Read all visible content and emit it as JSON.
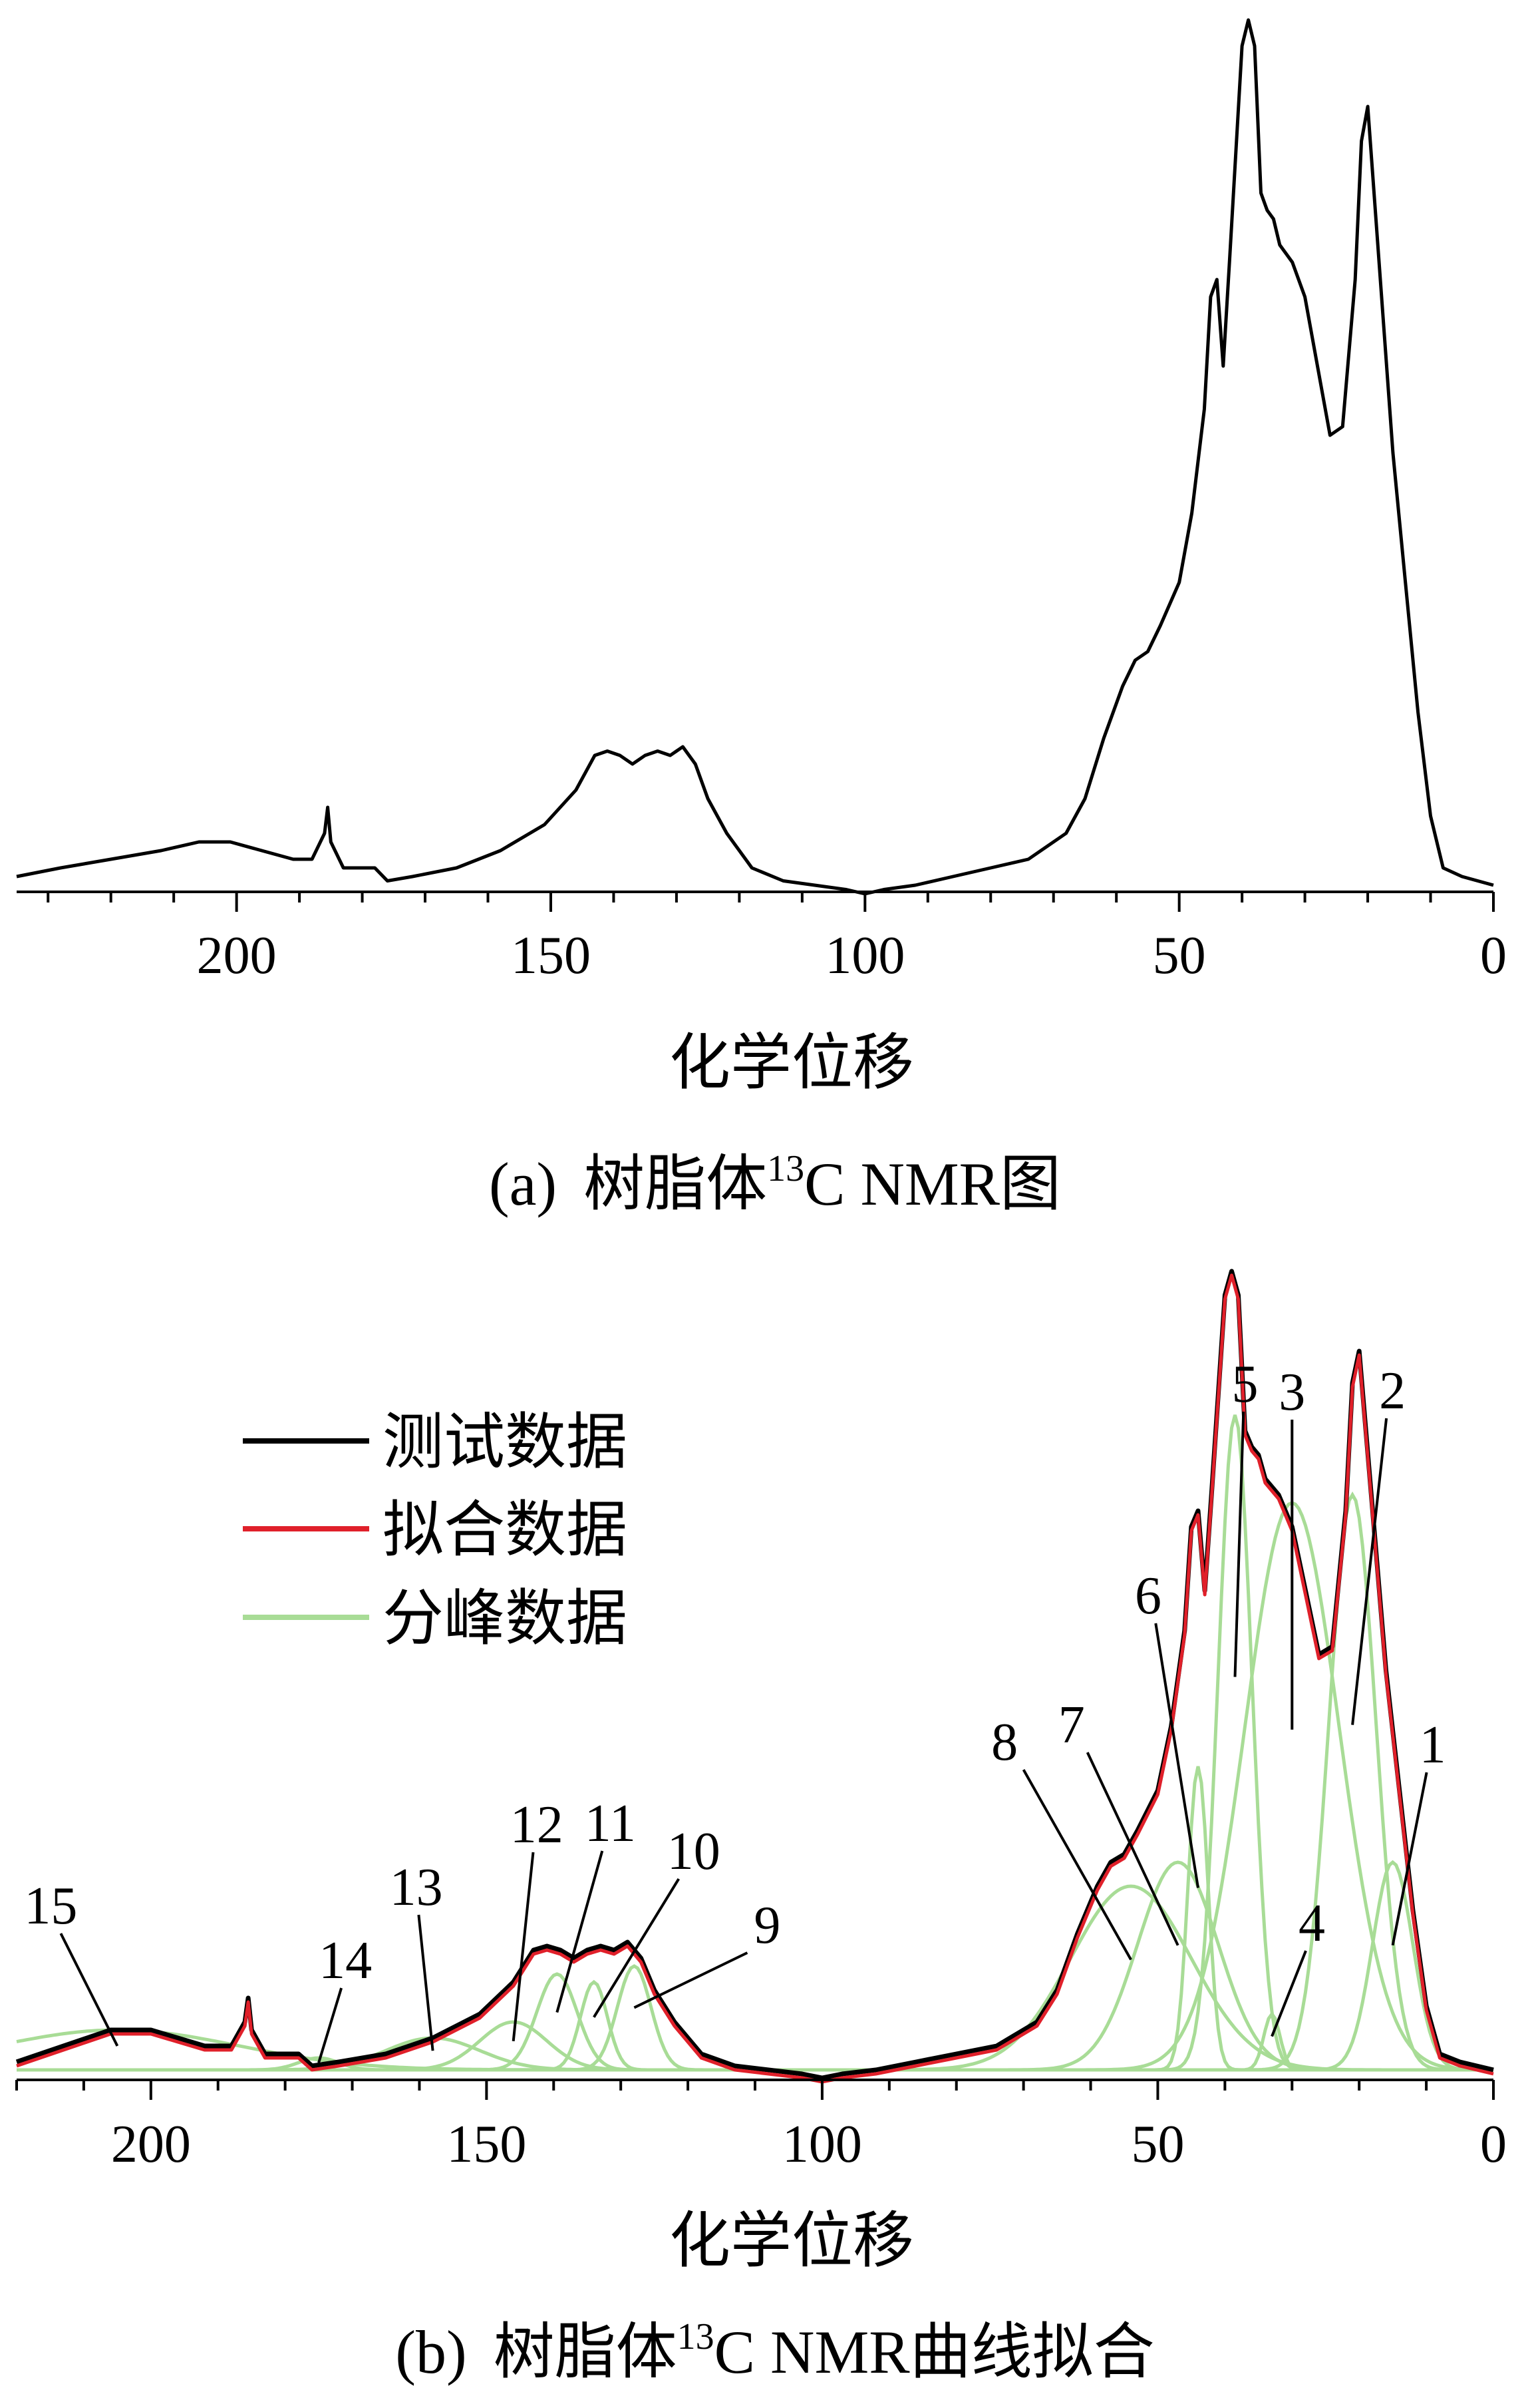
{
  "colors": {
    "test": "#000000",
    "fit": "#e0202a",
    "peak": "#a8dc96",
    "axis": "#000000"
  },
  "chart_data": [
    {
      "type": "line",
      "panel": "a",
      "caption_prefix": "(a)",
      "caption_main": "树脂体",
      "caption_sup": "13",
      "caption_tail": "C NMR图",
      "xlabel": "化学位移",
      "xlim": [
        235,
        0
      ],
      "xticks": [
        "200",
        "150",
        "100",
        "50",
        "0"
      ],
      "tick_values": [
        200,
        150,
        100,
        50,
        0
      ],
      "ylim": [
        0,
        100
      ],
      "series": [
        {
          "x": [
            235,
            228,
            220,
            212,
            206,
            201,
            196,
            191,
            188,
            186,
            185.5,
            185,
            183,
            181,
            178,
            176,
            172,
            165,
            158,
            151,
            146,
            143,
            141,
            139,
            137,
            135,
            133,
            131,
            129,
            127,
            125,
            122,
            118,
            113,
            108,
            103,
            100,
            97,
            92,
            86,
            80,
            74,
            68,
            65,
            62,
            59,
            57,
            55,
            53,
            50,
            48,
            46,
            45,
            44,
            43,
            42,
            40,
            39,
            38,
            37,
            36,
            35,
            34,
            32,
            30,
            28,
            26,
            24,
            22,
            21,
            20,
            18,
            16,
            14,
            12,
            10,
            8,
            5,
            0
          ],
          "y": [
            1,
            2,
            3,
            4,
            5,
            5,
            4,
            3,
            3,
            6,
            9,
            5,
            2,
            2,
            2,
            0.5,
            1,
            2,
            4,
            7,
            11,
            15,
            15.5,
            15,
            14,
            15,
            15.5,
            15,
            16,
            14,
            10,
            6,
            2,
            0.5,
            0,
            -0.5,
            -1,
            -0.5,
            0,
            1,
            2,
            3,
            6,
            10,
            17,
            23,
            26,
            27,
            30,
            35,
            43,
            55,
            68,
            70,
            60,
            72,
            97,
            100,
            97,
            80,
            78,
            77,
            74,
            72,
            68,
            60,
            52,
            53,
            70,
            86,
            90,
            70,
            50,
            35,
            20,
            8,
            2,
            1,
            0
          ]
        }
      ]
    },
    {
      "type": "line",
      "panel": "b",
      "caption_prefix": "(b)",
      "caption_main": "树脂体",
      "caption_sup": "13",
      "caption_tail": "C NMR曲线拟合",
      "xlabel": "化学位移",
      "xlim": [
        220,
        0
      ],
      "xticks": [
        "200",
        "150",
        "100",
        "50",
        "0"
      ],
      "tick_values": [
        200,
        150,
        100,
        50,
        0
      ],
      "ylim": [
        0,
        100
      ],
      "legend": {
        "position": "top-left",
        "labels": [
          "测试数据",
          "拟合数据",
          "分峰数据"
        ]
      },
      "series": [
        {
          "name": "测试数据",
          "x": [
            220,
            213,
            206,
            200,
            196,
            192,
            188,
            186,
            185.5,
            185,
            183,
            181,
            178,
            176,
            172,
            165,
            158,
            151,
            146,
            143,
            141,
            139,
            137,
            135,
            133,
            131,
            129,
            127,
            125,
            122,
            118,
            113,
            108,
            103,
            100,
            97,
            92,
            86,
            80,
            74,
            68,
            65,
            62,
            59,
            57,
            55,
            53,
            50,
            48,
            46,
            45,
            44,
            43,
            42,
            40,
            39,
            38,
            37,
            36,
            35,
            34,
            32,
            30,
            28,
            26,
            24,
            22,
            21,
            20,
            18,
            16,
            14,
            12,
            10,
            8,
            5,
            0
          ],
          "y": [
            1,
            3,
            5,
            5,
            4,
            3,
            3,
            6,
            9,
            5,
            2,
            2,
            2,
            0.5,
            1,
            2,
            4,
            7,
            11,
            15,
            15.5,
            15,
            14,
            15,
            15.5,
            15,
            16,
            14,
            10,
            6,
            2,
            0.5,
            0,
            -0.5,
            -1,
            -0.5,
            0,
            1,
            2,
            3,
            6,
            10,
            17,
            23,
            26,
            27,
            30,
            35,
            43,
            55,
            68,
            70,
            60,
            72,
            97,
            100,
            97,
            80,
            78,
            77,
            74,
            72,
            68,
            60,
            52,
            53,
            70,
            86,
            90,
            70,
            50,
            35,
            20,
            8,
            2,
            1,
            0
          ]
        },
        {
          "name": "拟合数据",
          "x": [
            220,
            213,
            206,
            200,
            196,
            192,
            188,
            186,
            185.5,
            185,
            183,
            181,
            178,
            176,
            172,
            165,
            158,
            151,
            146,
            143,
            141,
            139,
            137,
            135,
            133,
            131,
            129,
            127,
            125,
            122,
            118,
            113,
            108,
            103,
            100,
            97,
            92,
            86,
            80,
            74,
            68,
            65,
            62,
            59,
            57,
            55,
            53,
            50,
            48,
            46,
            45,
            44,
            43,
            42,
            40,
            39,
            38,
            37,
            36,
            35,
            34,
            32,
            30,
            28,
            26,
            24,
            22,
            21,
            20,
            18,
            16,
            14,
            12,
            10,
            8,
            5,
            0
          ],
          "y": [
            0.5,
            2.5,
            4.5,
            4.5,
            3.5,
            2.5,
            2.5,
            5.5,
            8.5,
            4.5,
            1.5,
            1.5,
            1.5,
            0,
            0.5,
            1.5,
            3.5,
            6.5,
            10.5,
            14.5,
            15,
            14.5,
            13.5,
            14.5,
            15,
            14.5,
            15.5,
            13.5,
            9.5,
            5.5,
            1.5,
            0,
            -0.5,
            -1,
            -1.5,
            -1,
            -0.5,
            0.5,
            1.5,
            2.5,
            5.5,
            9.5,
            16.5,
            22.5,
            25.5,
            26.5,
            29.5,
            34.5,
            42.5,
            54.5,
            67.5,
            69.5,
            59.5,
            71.5,
            96.5,
            99.5,
            96.5,
            79.5,
            77.5,
            76.5,
            73.5,
            71.5,
            67.5,
            59.5,
            51.5,
            52.5,
            69.5,
            85.5,
            89.5,
            69.5,
            49.5,
            34.5,
            19.5,
            7.5,
            1.5,
            0.5,
            -0.5
          ]
        }
      ],
      "peaks": [
        {
          "label": "1",
          "center": 15,
          "height": 26,
          "width": 3
        },
        {
          "label": "2",
          "center": 21,
          "height": 72,
          "width": 3.5
        },
        {
          "label": "3",
          "center": 30,
          "height": 71,
          "width": 7
        },
        {
          "label": "4",
          "center": 33,
          "height": 7,
          "width": 1.2
        },
        {
          "label": "5",
          "center": 38.5,
          "height": 82,
          "width": 2.5
        },
        {
          "label": "6",
          "center": 44,
          "height": 38,
          "width": 1.5
        },
        {
          "label": "7",
          "center": 47,
          "height": 26,
          "width": 6
        },
        {
          "label": "8",
          "center": 54,
          "height": 23,
          "width": 9
        },
        {
          "label": "9",
          "center": 128,
          "height": 13,
          "width": 2.5
        },
        {
          "label": "10",
          "center": 134,
          "height": 11,
          "width": 2
        },
        {
          "label": "11",
          "center": 139.5,
          "height": 12,
          "width": 3
        },
        {
          "label": "12",
          "center": 146,
          "height": 6,
          "width": 5
        },
        {
          "label": "13",
          "center": 158,
          "height": 4,
          "width": 7
        },
        {
          "label": "14",
          "center": 175,
          "height": 1.5,
          "width": 3
        },
        {
          "label": "15",
          "center": 205,
          "height": 5,
          "width": 18
        }
      ]
    }
  ]
}
